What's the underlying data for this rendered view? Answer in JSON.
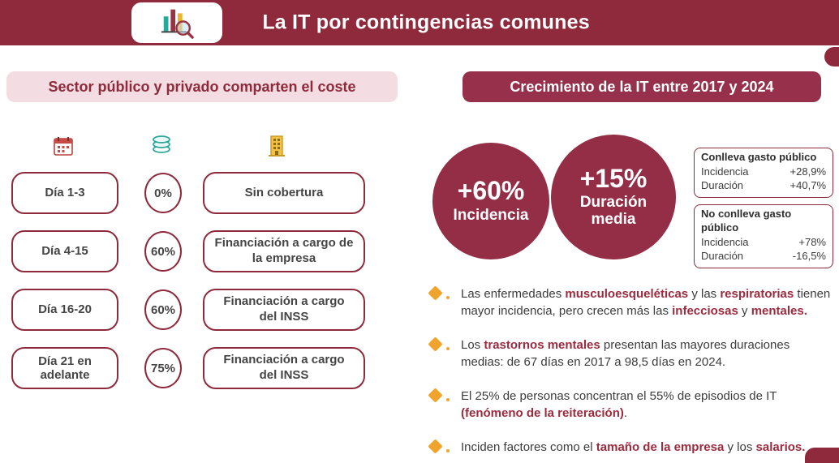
{
  "colors": {
    "maroon_header": "#8e2a3b",
    "maroon_circle": "#932e46",
    "pink_pill": "#f3dde2",
    "highlight_text": "#9b2b3e",
    "bullet_orange": "#f0a42e"
  },
  "header": {
    "title": "La IT por contingencias comunes",
    "icon": "bar-chart-magnifier-icon"
  },
  "left": {
    "title": "Sector público y privado comparten el coste",
    "icons": [
      "calendar-icon",
      "coins-icon",
      "building-icon"
    ],
    "rows": [
      {
        "day": "Día 1-3",
        "pct": "0%",
        "desc": "Sin cobertura"
      },
      {
        "day": "Día 4-15",
        "pct": "60%",
        "desc": "Financiación a cargo de la empresa"
      },
      {
        "day": "Día 16-20",
        "pct": "60%",
        "desc": "Financiación a cargo del INSS"
      },
      {
        "day": "Día 21 en adelante",
        "pct": "75%",
        "desc": "Financiación a cargo del INSS"
      }
    ]
  },
  "right": {
    "title": "Crecimiento de la IT entre 2017 y 2024",
    "circles": [
      {
        "value": "+60%",
        "label": "Incidencia"
      },
      {
        "value": "+15%",
        "label": "Duración media"
      }
    ],
    "boxes": [
      {
        "title": "Conlleva gasto público",
        "rows": [
          {
            "label": "Incidencia",
            "value": "+28,9%"
          },
          {
            "label": "Duración",
            "value": "+40,7%"
          }
        ]
      },
      {
        "title": "No conlleva gasto público",
        "rows": [
          {
            "label": "Incidencia",
            "value": "+78%"
          },
          {
            "label": "Duración",
            "value": "-16,5%"
          }
        ]
      }
    ],
    "bullets": [
      {
        "segments": [
          {
            "text": "Las enfermedades "
          },
          {
            "text": "musculoesqueléticas",
            "highlight": true
          },
          {
            "text": " y las "
          },
          {
            "text": "respiratorias",
            "highlight": true
          },
          {
            "text": " tienen mayor incidencia, pero crecen más las "
          },
          {
            "text": "infecciosas",
            "highlight": true
          },
          {
            "text": " y "
          },
          {
            "text": "mentales.",
            "highlight": true
          }
        ]
      },
      {
        "segments": [
          {
            "text": "Los "
          },
          {
            "text": "trastornos mentales",
            "highlight": true
          },
          {
            "text": " presentan las mayores duraciones medias: de 67 días en 2017 a 98,5 días en 2024."
          }
        ]
      },
      {
        "segments": [
          {
            "text": "El 25% de personas concentran el 55% de episodios de IT "
          },
          {
            "text": "(fenómeno de la reiteración)",
            "highlight": true
          },
          {
            "text": "."
          }
        ]
      },
      {
        "segments": [
          {
            "text": "Inciden factores como el "
          },
          {
            "text": "tamaño de la empresa",
            "highlight": true
          },
          {
            "text": " y los "
          },
          {
            "text": "salarios.",
            "highlight": true
          }
        ]
      }
    ]
  }
}
